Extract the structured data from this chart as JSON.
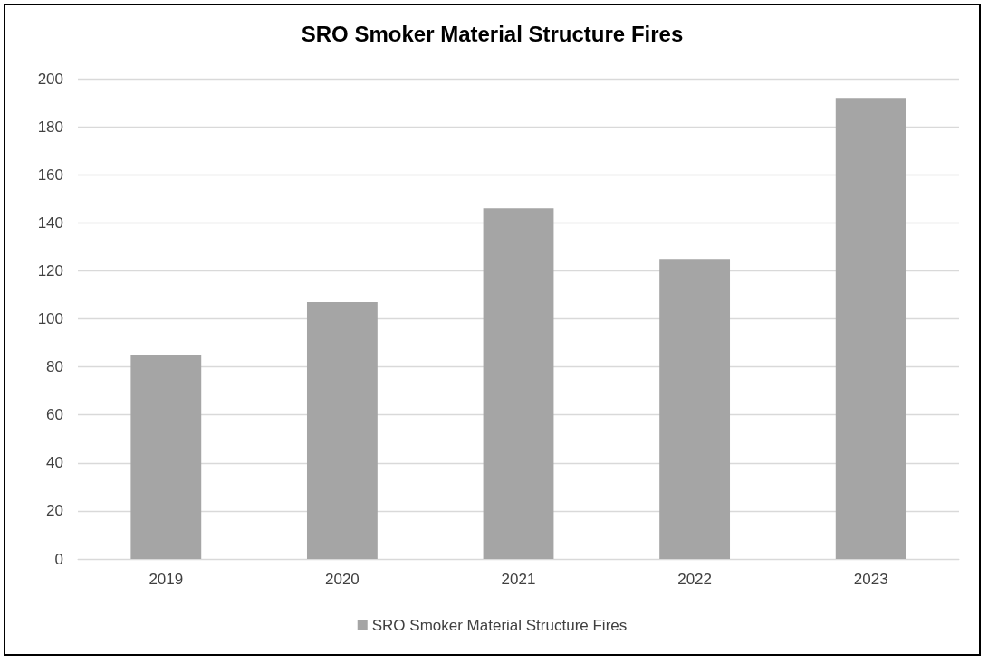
{
  "chart_data": {
    "type": "bar",
    "title": "SRO Smoker Material Structure Fires",
    "categories": [
      "2019",
      "2020",
      "2021",
      "2022",
      "2023"
    ],
    "series": [
      {
        "name": "SRO Smoker Material Structure Fires",
        "color": "#a5a5a5",
        "values": [
          85,
          107,
          146,
          125,
          192
        ]
      }
    ],
    "ylim": [
      0,
      200
    ],
    "yticks": [
      0,
      20,
      40,
      60,
      80,
      100,
      120,
      140,
      160,
      180,
      200
    ],
    "grid": "y",
    "legend": "bottom"
  }
}
